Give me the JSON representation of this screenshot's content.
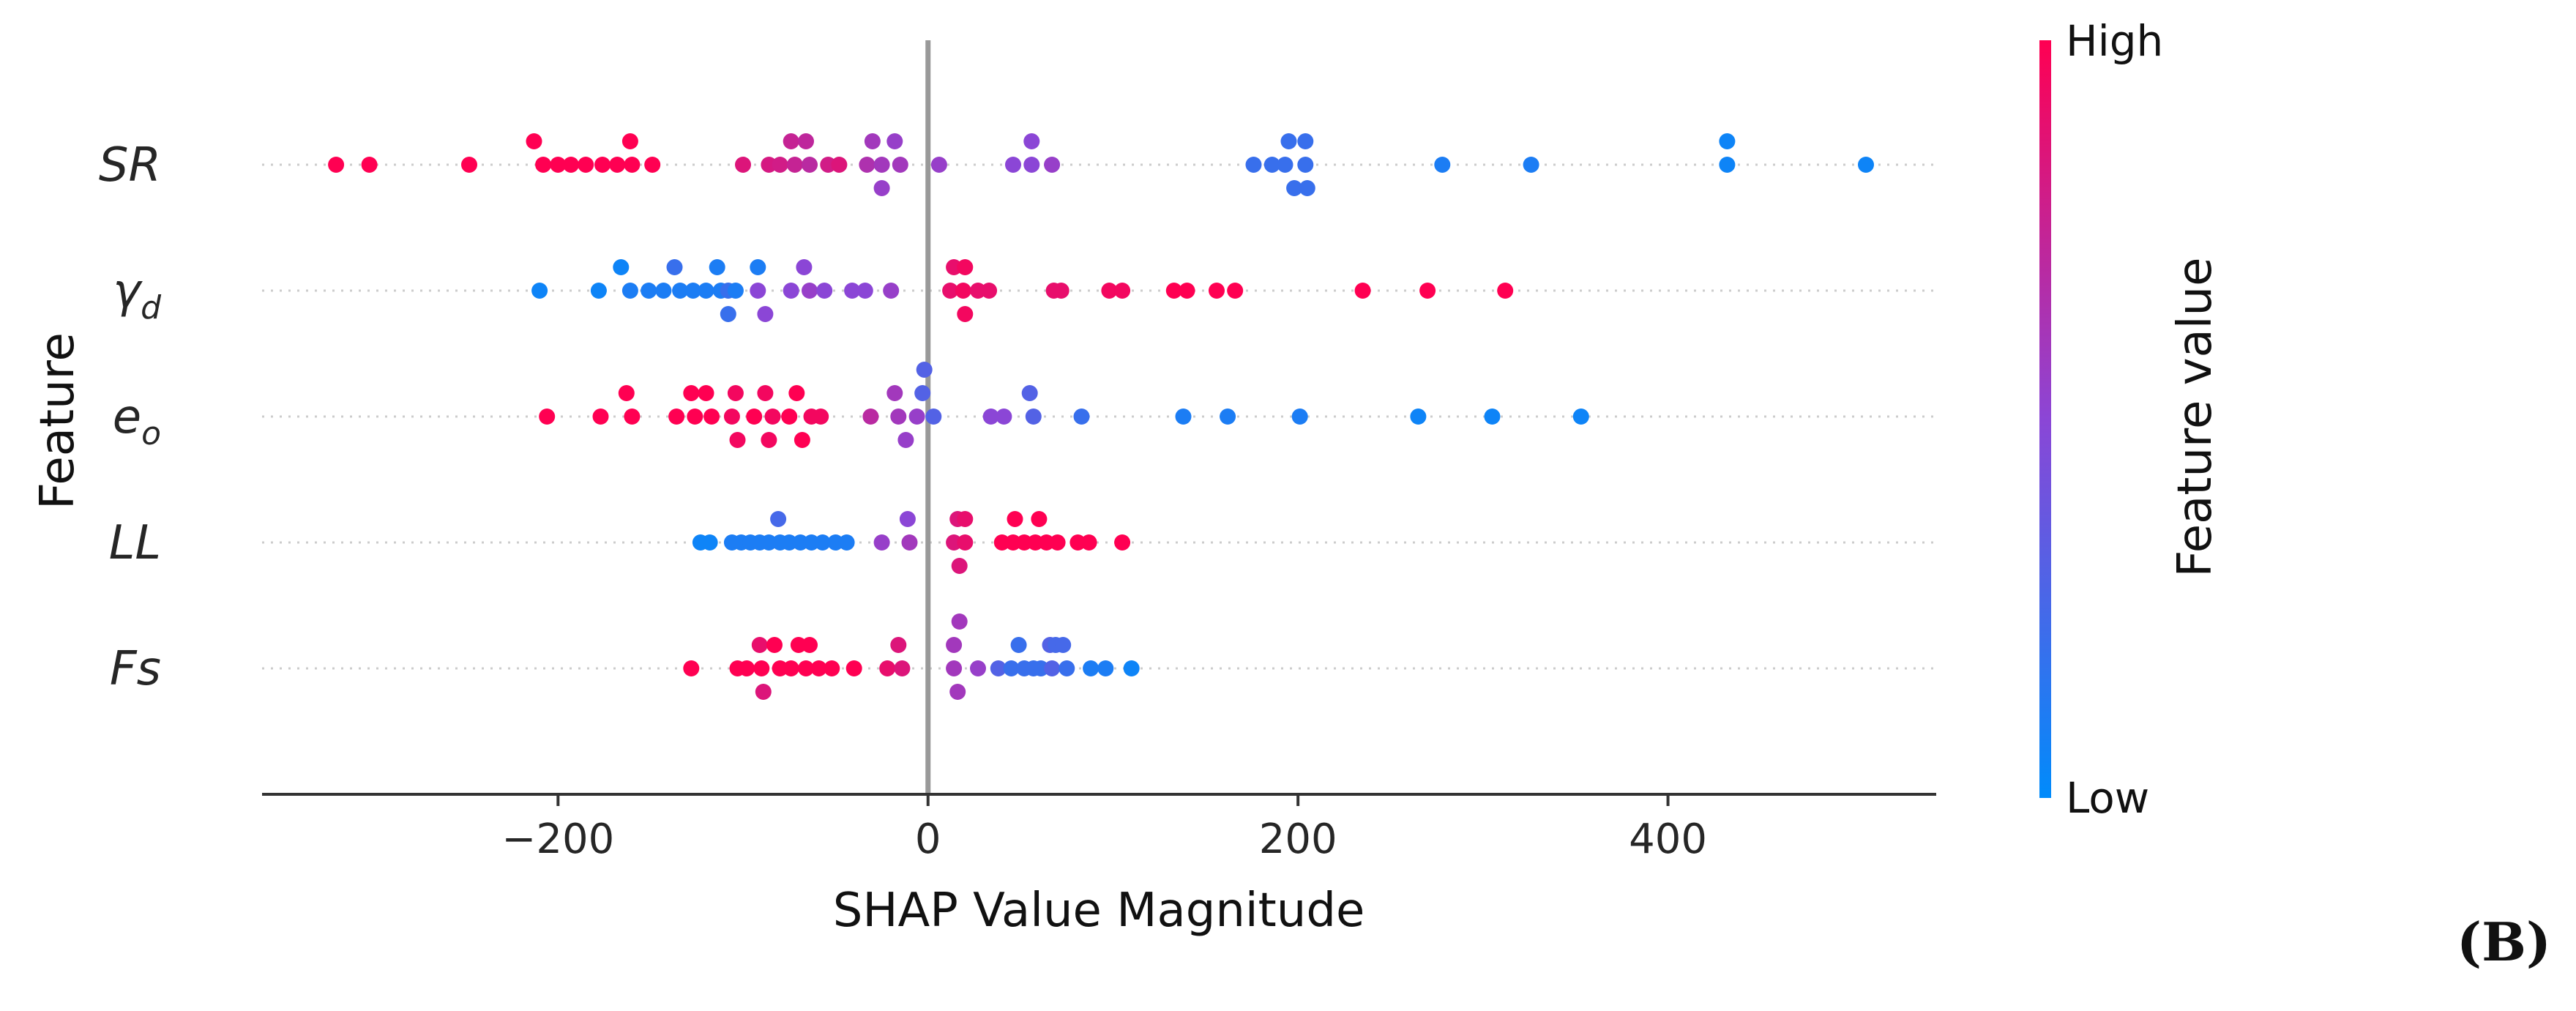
{
  "chart_data": {
    "type": "scatter",
    "subtype": "shap-beeswarm",
    "title": "",
    "xlabel": "SHAP Value Magnitude",
    "ylabel": "Feature",
    "xlim": [
      -360,
      545
    ],
    "xticks": [
      -200,
      0,
      200,
      400
    ],
    "xtick_labels": [
      "−200",
      "0",
      "200",
      "400"
    ],
    "grid": false,
    "zero_line": true,
    "colorbar": {
      "title": "Feature value",
      "high_label": "High",
      "low_label": "Low",
      "high_color": "#ff0052",
      "mid_color": "#8b46d6",
      "low_color": "#008bfb"
    },
    "panel_label": "(B)",
    "features": [
      {
        "name": "SR",
        "base": "SR",
        "sub": "",
        "points": [
          {
            "x": -320,
            "v": 1.0,
            "o": 0
          },
          {
            "x": -302,
            "v": 1.0,
            "o": 0
          },
          {
            "x": -248,
            "v": 1.0,
            "o": 0
          },
          {
            "x": -213,
            "v": 1.0,
            "o": 1
          },
          {
            "x": -208,
            "v": 1.0,
            "o": 0
          },
          {
            "x": -200,
            "v": 1.0,
            "o": 0
          },
          {
            "x": -193,
            "v": 1.0,
            "o": 0
          },
          {
            "x": -185,
            "v": 1.0,
            "o": 0
          },
          {
            "x": -176,
            "v": 1.0,
            "o": 0
          },
          {
            "x": -168,
            "v": 1.0,
            "o": 0
          },
          {
            "x": -161,
            "v": 1.0,
            "o": 1
          },
          {
            "x": -160,
            "v": 1.0,
            "o": 0
          },
          {
            "x": -149,
            "v": 1.0,
            "o": 0
          },
          {
            "x": -100,
            "v": 0.85,
            "o": 0
          },
          {
            "x": -86,
            "v": 0.82,
            "o": 0
          },
          {
            "x": -80,
            "v": 0.8,
            "o": 0
          },
          {
            "x": -74,
            "v": 0.75,
            "o": 1
          },
          {
            "x": -72,
            "v": 0.75,
            "o": 0
          },
          {
            "x": -66,
            "v": 0.72,
            "o": 1
          },
          {
            "x": -64,
            "v": 0.7,
            "o": 0
          },
          {
            "x": -54,
            "v": 0.8,
            "o": 0
          },
          {
            "x": -48,
            "v": 0.85,
            "o": 0
          },
          {
            "x": -33,
            "v": 0.65,
            "o": 0
          },
          {
            "x": -30,
            "v": 0.6,
            "o": 1
          },
          {
            "x": -25,
            "v": 0.6,
            "o": 0
          },
          {
            "x": -25,
            "v": 0.55,
            "o": -1
          },
          {
            "x": -18,
            "v": 0.55,
            "o": 1
          },
          {
            "x": -15,
            "v": 0.6,
            "o": 0
          },
          {
            "x": 6,
            "v": 0.55,
            "o": 0
          },
          {
            "x": 46,
            "v": 0.5,
            "o": 0
          },
          {
            "x": 56,
            "v": 0.5,
            "o": 0
          },
          {
            "x": 56,
            "v": 0.5,
            "o": 1
          },
          {
            "x": 67,
            "v": 0.55,
            "o": 0
          },
          {
            "x": 176,
            "v": 0.2,
            "o": 0
          },
          {
            "x": 186,
            "v": 0.2,
            "o": 0
          },
          {
            "x": 193,
            "v": 0.2,
            "o": 0
          },
          {
            "x": 195,
            "v": 0.2,
            "o": 1
          },
          {
            "x": 198,
            "v": 0.2,
            "o": -1
          },
          {
            "x": 204,
            "v": 0.2,
            "o": 0
          },
          {
            "x": 204,
            "v": 0.2,
            "o": 1
          },
          {
            "x": 205,
            "v": 0.2,
            "o": -1
          },
          {
            "x": 278,
            "v": 0.1,
            "o": 0
          },
          {
            "x": 326,
            "v": 0.1,
            "o": 0
          },
          {
            "x": 432,
            "v": 0.05,
            "o": 0
          },
          {
            "x": 432,
            "v": 0.05,
            "o": 1
          },
          {
            "x": 507,
            "v": 0.05,
            "o": 0
          }
        ]
      },
      {
        "name": "γd",
        "base": "γ",
        "sub": "d",
        "points": [
          {
            "x": -210,
            "v": 0.05,
            "o": 0
          },
          {
            "x": -178,
            "v": 0.05,
            "o": 0
          },
          {
            "x": -166,
            "v": 0.05,
            "o": 1
          },
          {
            "x": -161,
            "v": 0.1,
            "o": 0
          },
          {
            "x": -151,
            "v": 0.1,
            "o": 0
          },
          {
            "x": -143,
            "v": 0.1,
            "o": 0
          },
          {
            "x": -137,
            "v": 0.2,
            "o": 1
          },
          {
            "x": -134,
            "v": 0.1,
            "o": 0
          },
          {
            "x": -127,
            "v": 0.1,
            "o": 0
          },
          {
            "x": -120,
            "v": 0.1,
            "o": 0
          },
          {
            "x": -114,
            "v": 0.1,
            "o": 1
          },
          {
            "x": -112,
            "v": 0.1,
            "o": 0
          },
          {
            "x": -108,
            "v": 0.2,
            "o": 0
          },
          {
            "x": -108,
            "v": 0.2,
            "o": -1
          },
          {
            "x": -104,
            "v": 0.1,
            "o": 0
          },
          {
            "x": -92,
            "v": 0.1,
            "o": 1
          },
          {
            "x": -92,
            "v": 0.5,
            "o": 0
          },
          {
            "x": -88,
            "v": 0.5,
            "o": -1
          },
          {
            "x": -74,
            "v": 0.5,
            "o": 0
          },
          {
            "x": -67,
            "v": 0.5,
            "o": 1
          },
          {
            "x": -64,
            "v": 0.55,
            "o": 0
          },
          {
            "x": -56,
            "v": 0.5,
            "o": 0
          },
          {
            "x": -41,
            "v": 0.5,
            "o": 0
          },
          {
            "x": -34,
            "v": 0.5,
            "o": 0
          },
          {
            "x": -20,
            "v": 0.55,
            "o": 0
          },
          {
            "x": 12,
            "v": 0.9,
            "o": 0
          },
          {
            "x": 14,
            "v": 0.9,
            "o": 1
          },
          {
            "x": 19,
            "v": 0.95,
            "o": 0
          },
          {
            "x": 20,
            "v": 0.95,
            "o": 1
          },
          {
            "x": 20,
            "v": 0.95,
            "o": -1
          },
          {
            "x": 27,
            "v": 0.9,
            "o": 0
          },
          {
            "x": 33,
            "v": 0.9,
            "o": 0
          },
          {
            "x": 68,
            "v": 0.9,
            "o": 0
          },
          {
            "x": 72,
            "v": 0.9,
            "o": 0
          },
          {
            "x": 98,
            "v": 0.95,
            "o": 0
          },
          {
            "x": 105,
            "v": 0.95,
            "o": 0
          },
          {
            "x": 133,
            "v": 1.0,
            "o": 0
          },
          {
            "x": 140,
            "v": 1.0,
            "o": 0
          },
          {
            "x": 156,
            "v": 1.0,
            "o": 0
          },
          {
            "x": 166,
            "v": 1.0,
            "o": 0
          },
          {
            "x": 235,
            "v": 1.0,
            "o": 0
          },
          {
            "x": 270,
            "v": 1.0,
            "o": 0
          },
          {
            "x": 312,
            "v": 1.0,
            "o": 0
          }
        ]
      },
      {
        "name": "eo",
        "base": "e",
        "sub": "o",
        "points": [
          {
            "x": -206,
            "v": 1.0,
            "o": 0
          },
          {
            "x": -177,
            "v": 1.0,
            "o": 0
          },
          {
            "x": -163,
            "v": 1.0,
            "o": 1
          },
          {
            "x": -160,
            "v": 1.0,
            "o": 0
          },
          {
            "x": -136,
            "v": 1.0,
            "o": 0
          },
          {
            "x": -128,
            "v": 1.0,
            "o": 1
          },
          {
            "x": -126,
            "v": 1.0,
            "o": 0
          },
          {
            "x": -120,
            "v": 1.0,
            "o": 1
          },
          {
            "x": -117,
            "v": 1.0,
            "o": 0
          },
          {
            "x": -106,
            "v": 0.95,
            "o": 0
          },
          {
            "x": -104,
            "v": 0.95,
            "o": 1
          },
          {
            "x": -103,
            "v": 0.95,
            "o": -1
          },
          {
            "x": -94,
            "v": 1.0,
            "o": 0
          },
          {
            "x": -88,
            "v": 0.95,
            "o": 1
          },
          {
            "x": -86,
            "v": 0.95,
            "o": -1
          },
          {
            "x": -84,
            "v": 0.95,
            "o": 0
          },
          {
            "x": -75,
            "v": 1.0,
            "o": 0
          },
          {
            "x": -71,
            "v": 1.0,
            "o": 1
          },
          {
            "x": -68,
            "v": 1.0,
            "o": -1
          },
          {
            "x": -63,
            "v": 0.95,
            "o": 0
          },
          {
            "x": -58,
            "v": 0.95,
            "o": 0
          },
          {
            "x": -31,
            "v": 0.7,
            "o": 0
          },
          {
            "x": -18,
            "v": 0.6,
            "o": 1
          },
          {
            "x": -16,
            "v": 0.6,
            "o": 0
          },
          {
            "x": -12,
            "v": 0.55,
            "o": -1
          },
          {
            "x": -6,
            "v": 0.55,
            "o": 0
          },
          {
            "x": -3,
            "v": 0.3,
            "o": 1
          },
          {
            "x": -2,
            "v": 0.3,
            "o": 2
          },
          {
            "x": 3,
            "v": 0.3,
            "o": 0
          },
          {
            "x": 34,
            "v": 0.5,
            "o": 0
          },
          {
            "x": 41,
            "v": 0.5,
            "o": 0
          },
          {
            "x": 55,
            "v": 0.3,
            "o": 1
          },
          {
            "x": 57,
            "v": 0.3,
            "o": 0
          },
          {
            "x": 83,
            "v": 0.2,
            "o": 0
          },
          {
            "x": 138,
            "v": 0.1,
            "o": 0
          },
          {
            "x": 162,
            "v": 0.1,
            "o": 0
          },
          {
            "x": 201,
            "v": 0.1,
            "o": 0
          },
          {
            "x": 265,
            "v": 0.05,
            "o": 0
          },
          {
            "x": 305,
            "v": 0.05,
            "o": 0
          },
          {
            "x": 353,
            "v": 0.05,
            "o": 0
          }
        ]
      },
      {
        "name": "LL",
        "base": "LL",
        "sub": "",
        "points": [
          {
            "x": -123,
            "v": 0.05,
            "o": 0
          },
          {
            "x": -118,
            "v": 0.05,
            "o": 0
          },
          {
            "x": -106,
            "v": 0.1,
            "o": 0
          },
          {
            "x": -101,
            "v": 0.1,
            "o": 0
          },
          {
            "x": -96,
            "v": 0.1,
            "o": 0
          },
          {
            "x": -91,
            "v": 0.1,
            "o": 0
          },
          {
            "x": -86,
            "v": 0.1,
            "o": 0
          },
          {
            "x": -81,
            "v": 0.25,
            "o": 1
          },
          {
            "x": -80,
            "v": 0.1,
            "o": 0
          },
          {
            "x": -75,
            "v": 0.1,
            "o": 0
          },
          {
            "x": -69,
            "v": 0.1,
            "o": 0
          },
          {
            "x": -63,
            "v": 0.1,
            "o": 0
          },
          {
            "x": -57,
            "v": 0.1,
            "o": 0
          },
          {
            "x": -50,
            "v": 0.1,
            "o": 0
          },
          {
            "x": -44,
            "v": 0.1,
            "o": 0
          },
          {
            "x": -25,
            "v": 0.55,
            "o": 0
          },
          {
            "x": -11,
            "v": 0.5,
            "o": 1
          },
          {
            "x": -10,
            "v": 0.6,
            "o": 0
          },
          {
            "x": 14,
            "v": 0.85,
            "o": 0
          },
          {
            "x": 16,
            "v": 0.85,
            "o": 1
          },
          {
            "x": 17,
            "v": 0.85,
            "o": -1
          },
          {
            "x": 20,
            "v": 0.9,
            "o": 1
          },
          {
            "x": 20,
            "v": 0.9,
            "o": 0
          },
          {
            "x": 40,
            "v": 1.0,
            "o": 0
          },
          {
            "x": 46,
            "v": 1.0,
            "o": 0
          },
          {
            "x": 47,
            "v": 1.0,
            "o": 1
          },
          {
            "x": 52,
            "v": 1.0,
            "o": 0
          },
          {
            "x": 58,
            "v": 1.0,
            "o": 0
          },
          {
            "x": 60,
            "v": 1.0,
            "o": 1
          },
          {
            "x": 64,
            "v": 1.0,
            "o": 0
          },
          {
            "x": 70,
            "v": 1.0,
            "o": 0
          },
          {
            "x": 81,
            "v": 1.0,
            "o": 0
          },
          {
            "x": 87,
            "v": 1.0,
            "o": 0
          },
          {
            "x": 105,
            "v": 1.0,
            "o": 0
          }
        ]
      },
      {
        "name": "Fs",
        "base": "Fs",
        "sub": "",
        "points": [
          {
            "x": -128,
            "v": 1.0,
            "o": 0
          },
          {
            "x": -103,
            "v": 1.0,
            "o": 0
          },
          {
            "x": -98,
            "v": 1.0,
            "o": 0
          },
          {
            "x": -91,
            "v": 0.9,
            "o": 1
          },
          {
            "x": -90,
            "v": 1.0,
            "o": 0
          },
          {
            "x": -89,
            "v": 0.85,
            "o": -1
          },
          {
            "x": -83,
            "v": 1.0,
            "o": 1
          },
          {
            "x": -80,
            "v": 1.0,
            "o": 0
          },
          {
            "x": -74,
            "v": 1.0,
            "o": 0
          },
          {
            "x": -70,
            "v": 1.0,
            "o": 1
          },
          {
            "x": -66,
            "v": 1.0,
            "o": 0
          },
          {
            "x": -64,
            "v": 1.0,
            "o": 1
          },
          {
            "x": -59,
            "v": 1.0,
            "o": 0
          },
          {
            "x": -52,
            "v": 1.0,
            "o": 0
          },
          {
            "x": -40,
            "v": 1.0,
            "o": 0
          },
          {
            "x": -22,
            "v": 0.9,
            "o": 0
          },
          {
            "x": -16,
            "v": 0.85,
            "o": 1
          },
          {
            "x": -14,
            "v": 0.85,
            "o": 0
          },
          {
            "x": 14,
            "v": 0.6,
            "o": 0
          },
          {
            "x": 14,
            "v": 0.6,
            "o": 1
          },
          {
            "x": 16,
            "v": 0.6,
            "o": -1
          },
          {
            "x": 17,
            "v": 0.6,
            "o": 2
          },
          {
            "x": 27,
            "v": 0.55,
            "o": 0
          },
          {
            "x": 38,
            "v": 0.3,
            "o": 0
          },
          {
            "x": 45,
            "v": 0.2,
            "o": 0
          },
          {
            "x": 49,
            "v": 0.2,
            "o": 1
          },
          {
            "x": 52,
            "v": 0.2,
            "o": 0
          },
          {
            "x": 57,
            "v": 0.2,
            "o": 0
          },
          {
            "x": 61,
            "v": 0.2,
            "o": 0
          },
          {
            "x": 66,
            "v": 0.3,
            "o": 1
          },
          {
            "x": 67,
            "v": 0.3,
            "o": 0
          },
          {
            "x": 69,
            "v": 0.25,
            "o": 1
          },
          {
            "x": 73,
            "v": 0.25,
            "o": 1
          },
          {
            "x": 75,
            "v": 0.2,
            "o": 0
          },
          {
            "x": 88,
            "v": 0.1,
            "o": 0
          },
          {
            "x": 96,
            "v": 0.1,
            "o": 0
          },
          {
            "x": 110,
            "v": 0.05,
            "o": 0
          }
        ]
      }
    ]
  }
}
